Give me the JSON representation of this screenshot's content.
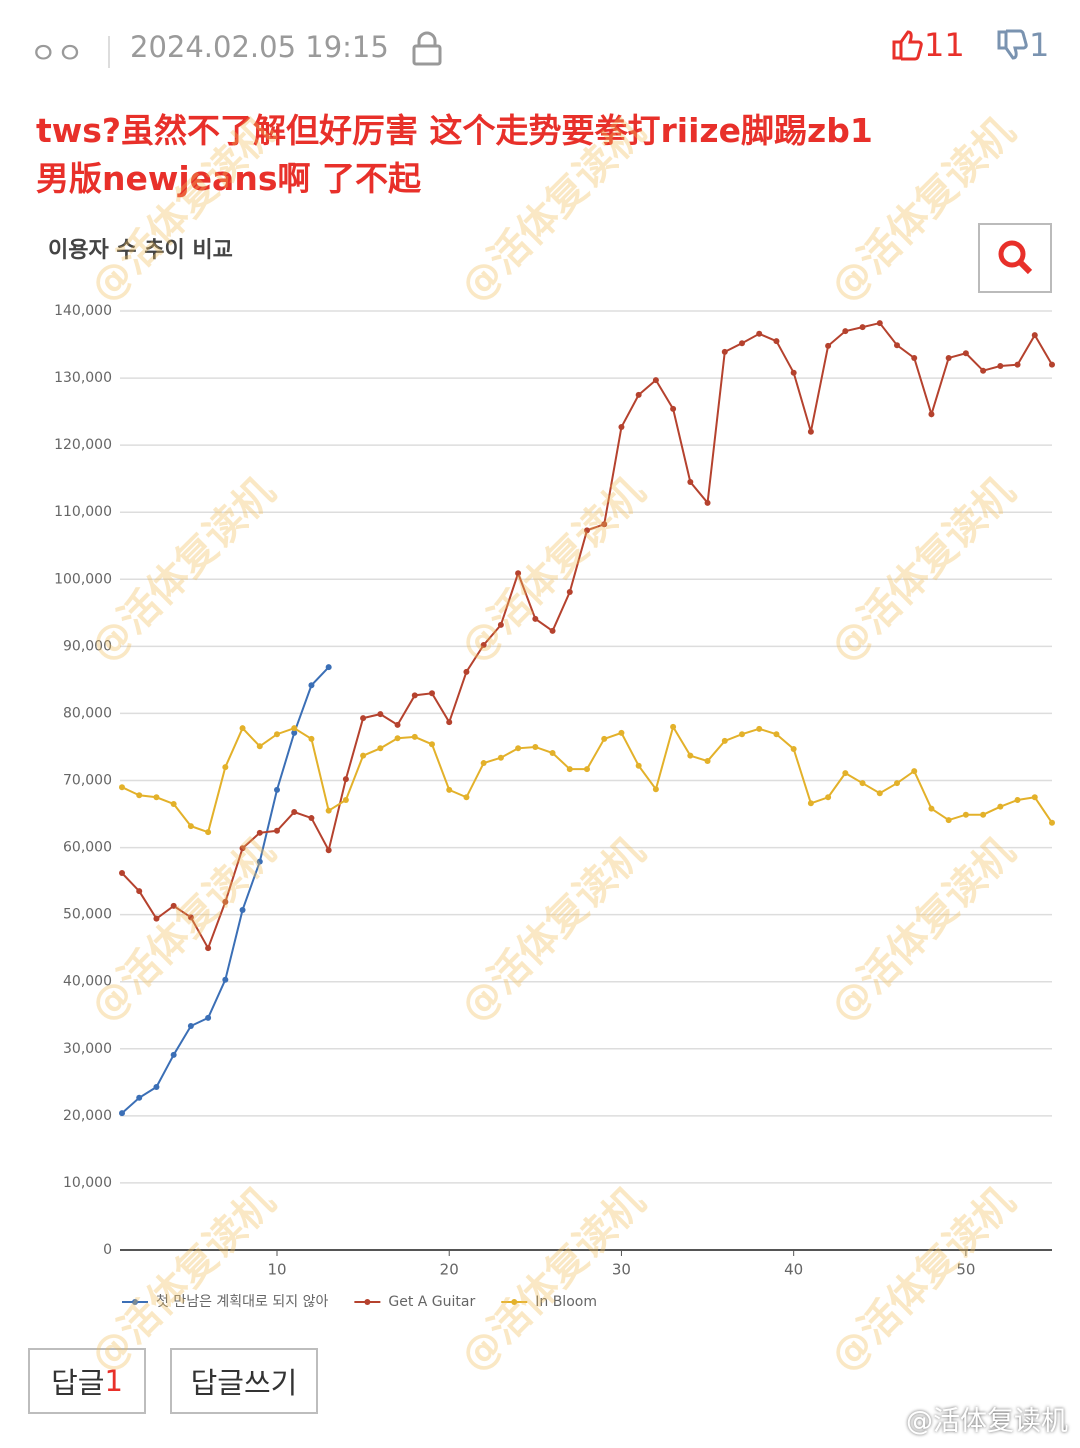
{
  "post": {
    "author": "ㅇㅇ",
    "date": "2024.02.05 19:15",
    "likes": 11,
    "dislikes": 1
  },
  "comment": {
    "lines": [
      "tws?虽然不了解但好厉害 这个走势要拳打riize脚踢zb1",
      "男版newjeans啊 了不起"
    ]
  },
  "chart_data": {
    "type": "line",
    "title": "이용자 수 추이 비교",
    "x": [
      1,
      2,
      3,
      4,
      5,
      6,
      7,
      8,
      9,
      10,
      11,
      12,
      13,
      14,
      15,
      16,
      17,
      18,
      19,
      20,
      21,
      22,
      23,
      24,
      25,
      26,
      27,
      28,
      29,
      30,
      31,
      32,
      33,
      34,
      35,
      36,
      37,
      38,
      39,
      40,
      41,
      42,
      43,
      44,
      45,
      46,
      47,
      48,
      49,
      50,
      51,
      52,
      53,
      54,
      55
    ],
    "xlim": [
      1,
      55
    ],
    "xticks": [
      10,
      20,
      30,
      40,
      50
    ],
    "ylim": [
      0,
      140000
    ],
    "yticks": [
      0,
      {
        "value": 10000,
        "label": "10,000"
      },
      {
        "value": 20000,
        "label": "20,000"
      },
      {
        "value": 30000,
        "label": "30,000"
      },
      {
        "value": 40000,
        "label": "40,000"
      },
      {
        "value": 50000,
        "label": "50,000"
      },
      {
        "value": 60000,
        "label": "60,000"
      },
      {
        "value": 70000,
        "label": "70,000"
      },
      {
        "value": 80000,
        "label": "80,000"
      },
      {
        "value": 90000,
        "label": "90,000"
      },
      {
        "value": 100000,
        "label": "100,000"
      },
      {
        "value": 110000,
        "label": "110,000"
      },
      {
        "value": 120000,
        "label": "120,000"
      },
      {
        "value": 130000,
        "label": "130,000"
      },
      {
        "value": 140000,
        "label": "140,000"
      }
    ],
    "grid": true,
    "legend": "bottom",
    "series": [
      {
        "name": "첫 만남은 계획대로 되지 않아",
        "color": "#3b6fb6",
        "values": [
          20400,
          22700,
          24300,
          29100,
          33400,
          34600,
          40300,
          50700,
          57900,
          68600,
          77100,
          84200,
          86900,
          null,
          null,
          null,
          null,
          null,
          null,
          null,
          null,
          null,
          null,
          null,
          null,
          null,
          null,
          null,
          null,
          null,
          null,
          null,
          null,
          null,
          null,
          null,
          null,
          null,
          null,
          null,
          null,
          null,
          null,
          null,
          null,
          null,
          null,
          null,
          null,
          null,
          null,
          null,
          null,
          null,
          null
        ]
      },
      {
        "name": "Get A Guitar",
        "color": "#b5422e",
        "values": [
          56200,
          53500,
          49400,
          51300,
          49600,
          45000,
          51900,
          59900,
          62200,
          62500,
          65300,
          64400,
          59600,
          70200,
          79300,
          79900,
          78300,
          82700,
          83000,
          78700,
          86200,
          90200,
          93200,
          100900,
          94100,
          92300,
          98100,
          107300,
          108200,
          122700,
          127500,
          129700,
          125400,
          114500,
          111400,
          133900,
          135200,
          136600,
          135500,
          130800,
          122000,
          134800,
          137000,
          137600,
          138200,
          134900,
          133000,
          124600,
          133000,
          133700,
          131100,
          131800,
          132000,
          136400,
          132000
        ]
      },
      {
        "name": "In Bloom",
        "color": "#e3b12a",
        "values": [
          69000,
          67800,
          67500,
          66500,
          63200,
          62300,
          72000,
          77800,
          75100,
          76900,
          77800,
          76200,
          65500,
          67100,
          73700,
          74800,
          76300,
          76500,
          75400,
          68600,
          67500,
          72600,
          73400,
          74800,
          75000,
          74100,
          71700,
          71700,
          76200,
          77100,
          72200,
          68700,
          78000,
          73700,
          72900,
          75900,
          76900,
          77700,
          76900,
          74700,
          66600,
          67500,
          71100,
          69600,
          68100,
          69600,
          71400,
          65800,
          64100,
          64900,
          64900,
          66100,
          67100,
          67500,
          63700
        ]
      }
    ]
  },
  "buttons": {
    "replies_label": "답글",
    "replies_count": 1,
    "write": "답글쓰기"
  },
  "watermark": "@活体复读机"
}
